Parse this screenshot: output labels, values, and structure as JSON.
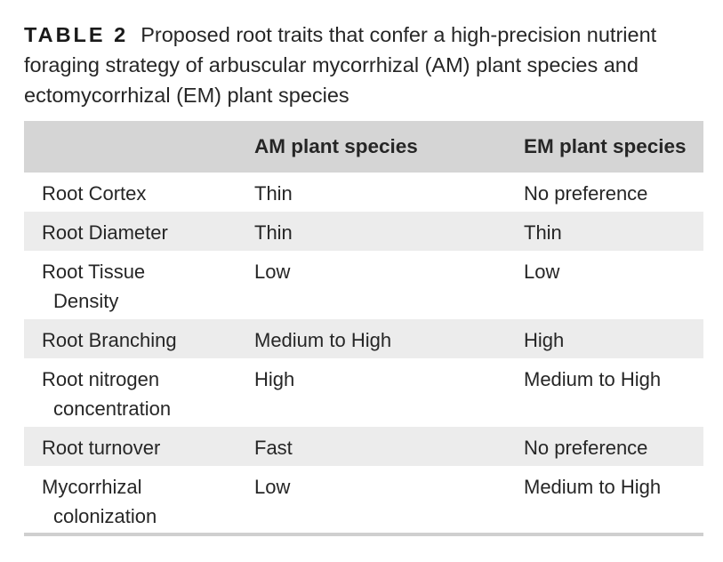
{
  "caption": {
    "label": "TABLE 2",
    "text": "Proposed root traits that confer a high-precision nutrient foraging strategy of arbuscular mycorrhizal (AM) plant species and ectomycorrhizal (EM) plant species"
  },
  "table": {
    "headers": [
      "",
      "AM plant species",
      "EM plant species"
    ],
    "rows": [
      {
        "trait": "Root Cortex",
        "trait_line2": "",
        "am": "Thin",
        "em": "No preference"
      },
      {
        "trait": "Root Diameter",
        "trait_line2": "",
        "am": "Thin",
        "em": "Thin"
      },
      {
        "trait": "Root Tissue",
        "trait_line2": "Density",
        "am": "Low",
        "em": "Low"
      },
      {
        "trait": "Root Branching",
        "trait_line2": "",
        "am": "Medium to High",
        "em": "High"
      },
      {
        "trait": "Root nitrogen",
        "trait_line2": "concentration",
        "am": "High",
        "em": "Medium to High"
      },
      {
        "trait": "Root turnover",
        "trait_line2": "",
        "am": "Fast",
        "em": "No preference"
      },
      {
        "trait": "Mycorrhizal",
        "trait_line2": "colonization",
        "am": "Low",
        "em": "Medium to High"
      }
    ]
  }
}
